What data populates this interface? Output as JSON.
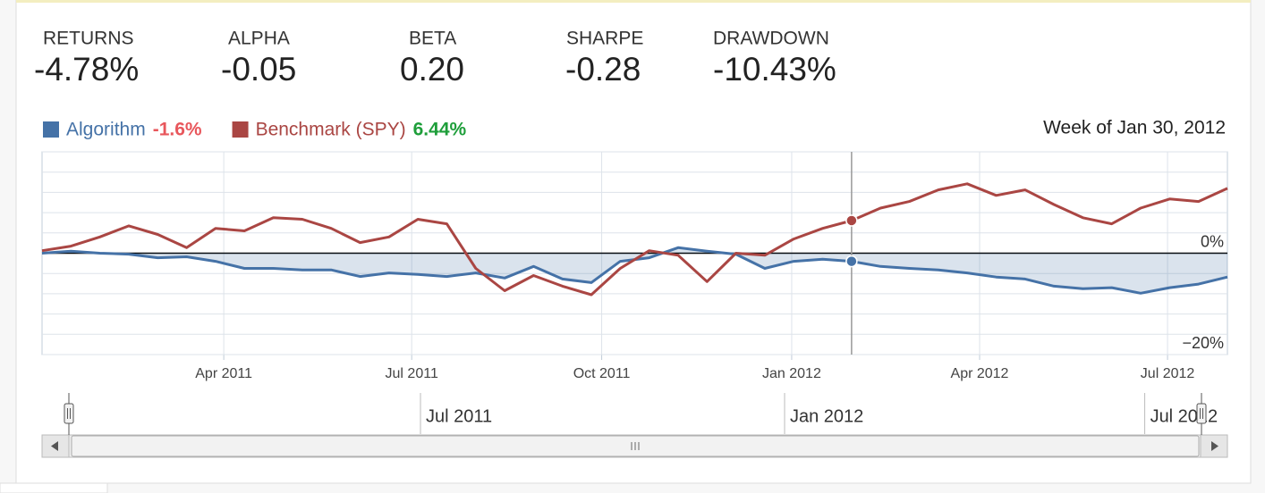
{
  "stats": [
    {
      "label": "RETURNS",
      "value": "-4.78%"
    },
    {
      "label": "ALPHA",
      "value": "-0.05"
    },
    {
      "label": "BETA",
      "value": "0.20"
    },
    {
      "label": "SHARPE",
      "value": "-0.28"
    },
    {
      "label": "DRAWDOWN",
      "value": "-10.43%"
    }
  ],
  "chart_data": {
    "type": "line",
    "x": [
      "2011-01-03",
      "2011-01-17",
      "2011-01-31",
      "2011-02-14",
      "2011-02-28",
      "2011-03-14",
      "2011-03-28",
      "2011-04-11",
      "2011-04-25",
      "2011-05-09",
      "2011-05-23",
      "2011-06-06",
      "2011-06-20",
      "2011-07-04",
      "2011-07-18",
      "2011-08-01",
      "2011-08-15",
      "2011-08-29",
      "2011-09-12",
      "2011-09-26",
      "2011-10-10",
      "2011-10-24",
      "2011-11-07",
      "2011-11-21",
      "2011-12-05",
      "2011-12-19",
      "2012-01-02",
      "2012-01-16",
      "2012-01-30",
      "2012-02-13",
      "2012-02-27",
      "2012-03-12",
      "2012-03-26",
      "2012-04-09",
      "2012-04-23",
      "2012-05-07",
      "2012-05-21",
      "2012-06-04",
      "2012-06-18",
      "2012-07-02",
      "2012-07-16",
      "2012-07-30"
    ],
    "series": [
      {
        "name": "Algorithm",
        "color": "#4572a7",
        "current_label": "-1.6%",
        "current_color": "#e8575c",
        "fill": true,
        "values": [
          0,
          0.4,
          0,
          -0.2,
          -0.9,
          -0.7,
          -1.6,
          -3.0,
          -3.0,
          -3.3,
          -3.3,
          -4.6,
          -3.9,
          -4.2,
          -4.6,
          -3.9,
          -4.9,
          -2.6,
          -5.1,
          -5.8,
          -1.6,
          -0.9,
          1.1,
          0.4,
          -0.2,
          -3.0,
          -1.6,
          -1.2,
          -1.6,
          -2.6,
          -3.0,
          -3.3,
          -3.9,
          -4.7,
          -5.1,
          -6.5,
          -7.0,
          -6.8,
          -7.9,
          -6.8,
          -6.1,
          -4.7
        ]
      },
      {
        "name": "Benchmark (SPY)",
        "color": "#aa4643",
        "current_label": "6.44%",
        "current_color": "#1e9e3a",
        "values": [
          0.5,
          1.4,
          3.2,
          5.4,
          3.7,
          1.1,
          4.9,
          4.4,
          7.0,
          6.7,
          4.9,
          2.1,
          3.2,
          6.7,
          5.8,
          -3.0,
          -7.4,
          -4.4,
          -6.5,
          -8.2,
          -3.0,
          0.5,
          -0.4,
          -5.6,
          0,
          -0.4,
          2.8,
          4.9,
          6.44,
          8.9,
          10.2,
          12.5,
          13.7,
          11.4,
          12.5,
          9.6,
          7.0,
          5.8,
          8.9,
          10.7,
          10.2,
          12.8
        ]
      }
    ],
    "xlim": [
      "2011-01-03",
      "2012-07-30"
    ],
    "xticks": [
      {
        "value": "2011-04-01",
        "label": "Apr 2011"
      },
      {
        "value": "2011-07-01",
        "label": "Jul 2011"
      },
      {
        "value": "2011-10-01",
        "label": "Oct 2011"
      },
      {
        "value": "2012-01-01",
        "label": "Jan 2012"
      },
      {
        "value": "2012-04-01",
        "label": "Apr 2012"
      },
      {
        "value": "2012-07-01",
        "label": "Jul 2012"
      }
    ],
    "ylim": [
      -20,
      20
    ],
    "yticks": [
      {
        "value": 0,
        "label": "0%"
      },
      {
        "value": -20,
        "label": "−20%"
      }
    ],
    "ygrid": [
      20,
      16,
      12,
      8,
      4,
      0,
      -4,
      -8,
      -12,
      -16,
      -20
    ],
    "grid": true,
    "hover": {
      "label": "Week of Jan 30, 2012",
      "x": "2012-01-30"
    },
    "navigator": {
      "xticks": [
        {
          "value": "2011-07-01",
          "label": "Jul 2011"
        },
        {
          "value": "2012-01-01",
          "label": "Jan 2012"
        },
        {
          "value": "2012-07-01",
          "label": "Jul 2012"
        }
      ]
    }
  }
}
